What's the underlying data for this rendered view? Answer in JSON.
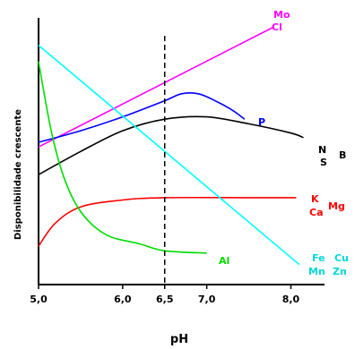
{
  "chart_data": {
    "type": "line",
    "xlabel": "pH",
    "ylabel": "Disponibilidade crescente",
    "xlim": [
      5.0,
      8.4
    ],
    "ylim": [
      0,
      100
    ],
    "x_ticks": [
      "5,0",
      "6,0",
      "6,5",
      "7,0",
      "8,0"
    ],
    "x_tick_values": [
      5.0,
      6.0,
      6.5,
      7.0,
      8.0
    ],
    "reference_line": {
      "x": 6.5,
      "style": "dashed"
    },
    "series": [
      {
        "name": "Mo Cl",
        "color": "#ff00ff",
        "points": [
          [
            5.0,
            48
          ],
          [
            7.8,
            100
          ]
        ]
      },
      {
        "name": "P",
        "color": "#0000ff",
        "points": [
          [
            5.0,
            50
          ],
          [
            5.5,
            55
          ],
          [
            6.0,
            61
          ],
          [
            6.5,
            68
          ],
          [
            6.7,
            71
          ],
          [
            6.9,
            71
          ],
          [
            7.1,
            68
          ],
          [
            7.3,
            64
          ],
          [
            7.45,
            60
          ]
        ]
      },
      {
        "name": "N S B",
        "color": "#000000",
        "points": [
          [
            5.0,
            36
          ],
          [
            5.5,
            46
          ],
          [
            6.0,
            55
          ],
          [
            6.5,
            60
          ],
          [
            7.0,
            61
          ],
          [
            7.5,
            58
          ],
          [
            8.0,
            54
          ],
          [
            8.15,
            52
          ]
        ]
      },
      {
        "name": "K Ca Mg",
        "color": "#ff0000",
        "points": [
          [
            5.0,
            5
          ],
          [
            5.2,
            15
          ],
          [
            5.5,
            22
          ],
          [
            6.0,
            25
          ],
          [
            6.5,
            26
          ],
          [
            7.5,
            26
          ],
          [
            8.0,
            26
          ],
          [
            8.05,
            26
          ]
        ]
      },
      {
        "name": "Fe Cu Mn Zn",
        "color": "#00ffff",
        "points": [
          [
            5.0,
            92
          ],
          [
            8.1,
            -3
          ]
        ]
      },
      {
        "name": "Al",
        "color": "#00dd00",
        "points": [
          [
            5.0,
            85
          ],
          [
            5.15,
            55
          ],
          [
            5.3,
            35
          ],
          [
            5.5,
            20
          ],
          [
            5.8,
            10
          ],
          [
            6.2,
            6
          ],
          [
            6.5,
            3
          ],
          [
            7.0,
            2
          ]
        ]
      }
    ],
    "labels": {
      "mo": "Mo",
      "cl": "Cl",
      "p": "P",
      "n": "N",
      "s": "S",
      "b": "B",
      "k": "K",
      "ca": "Ca",
      "mg": "Mg",
      "fe": "Fe",
      "cu": "Cu",
      "mn": "Mn",
      "zn": "Zn",
      "al": "Al"
    },
    "grid": false,
    "legend": "none"
  }
}
